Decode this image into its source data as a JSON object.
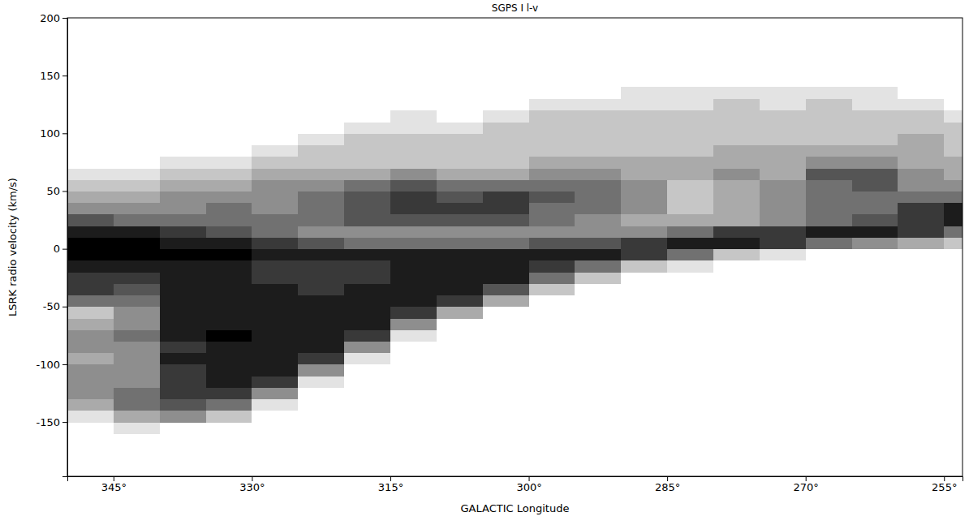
{
  "chart_data": {
    "type": "heatmap",
    "title": "SGPS I l-v",
    "x_label": "GALACTIC Longitude",
    "y_label": "LSRK radio velocity (km/s)",
    "xlim": [
      350,
      253
    ],
    "ylim": [
      -197,
      200
    ],
    "xticks": [
      {
        "value": 345,
        "label": "345°"
      },
      {
        "value": 330,
        "label": "330°"
      },
      {
        "value": 315,
        "label": "315°"
      },
      {
        "value": 300,
        "label": "300°"
      },
      {
        "value": 285,
        "label": "285°"
      },
      {
        "value": 270,
        "label": "270°"
      },
      {
        "value": 255,
        "label": "255°"
      }
    ],
    "yticks": [
      -150,
      -100,
      -50,
      0,
      50,
      100,
      150,
      200
    ],
    "grid": false,
    "color": "#000000",
    "zlim": [
      0,
      9
    ],
    "x_bins": [
      350,
      345,
      340,
      335,
      330,
      325,
      320,
      315,
      310,
      305,
      300,
      295,
      290,
      285,
      280,
      275,
      270,
      265,
      260,
      255,
      253
    ],
    "y_bins": [
      -160,
      -150,
      -140,
      -130,
      -120,
      -110,
      -100,
      -90,
      -80,
      -70,
      -60,
      -50,
      -40,
      -30,
      -20,
      -10,
      0,
      10,
      20,
      30,
      40,
      50,
      60,
      70,
      80,
      90,
      100,
      110,
      120,
      130,
      140
    ],
    "cells": [
      [
        0,
        1,
        3,
        4,
        4,
        4,
        3,
        4,
        4,
        3,
        2,
        5,
        7,
        7,
        8,
        9,
        9,
        8,
        6,
        4,
        3,
        2,
        1,
        0,
        0,
        0,
        0,
        0,
        0,
        0
      ],
      [
        1,
        3,
        5,
        5,
        4,
        4,
        4,
        4,
        5,
        4,
        4,
        5,
        6,
        7,
        8,
        9,
        9,
        8,
        5,
        4,
        3,
        2,
        1,
        0,
        0,
        0,
        0,
        0,
        0,
        0
      ],
      [
        0,
        4,
        6,
        7,
        7,
        7,
        8,
        7,
        8,
        8,
        8,
        8,
        8,
        8,
        8,
        9,
        8,
        7,
        5,
        4,
        4,
        3,
        2,
        1,
        0,
        0,
        0,
        0,
        0,
        0
      ],
      [
        0,
        2,
        5,
        7,
        8,
        8,
        8,
        8,
        9,
        8,
        8,
        8,
        8,
        8,
        8,
        9,
        8,
        6,
        5,
        5,
        4,
        3,
        2,
        1,
        0,
        0,
        0,
        0,
        0,
        0
      ],
      [
        0,
        0,
        1,
        4,
        7,
        8,
        8,
        8,
        8,
        8,
        8,
        8,
        8,
        7,
        7,
        8,
        7,
        5,
        5,
        4,
        4,
        4,
        3,
        2,
        1,
        0,
        0,
        0,
        0,
        0
      ],
      [
        0,
        0,
        0,
        0,
        1,
        4,
        7,
        8,
        8,
        8,
        8,
        8,
        7,
        7,
        7,
        8,
        6,
        4,
        5,
        5,
        5,
        4,
        3,
        2,
        2,
        1,
        0,
        0,
        0,
        0
      ],
      [
        0,
        0,
        0,
        0,
        0,
        0,
        1,
        4,
        7,
        8,
        8,
        8,
        8,
        7,
        7,
        8,
        5,
        4,
        6,
        6,
        6,
        5,
        3,
        2,
        2,
        2,
        1,
        0,
        0,
        0
      ],
      [
        0,
        0,
        0,
        0,
        0,
        0,
        0,
        0,
        1,
        4,
        7,
        8,
        8,
        8,
        8,
        8,
        5,
        4,
        6,
        7,
        7,
        6,
        4,
        2,
        2,
        2,
        1,
        1,
        0,
        0
      ],
      [
        0,
        0,
        0,
        0,
        0,
        0,
        0,
        0,
        0,
        0,
        3,
        7,
        8,
        8,
        8,
        8,
        5,
        4,
        6,
        7,
        6,
        5,
        3,
        2,
        2,
        2,
        1,
        0,
        0,
        0
      ],
      [
        0,
        0,
        0,
        0,
        0,
        0,
        0,
        0,
        0,
        0,
        0,
        3,
        6,
        8,
        8,
        8,
        5,
        4,
        6,
        7,
        7,
        5,
        3,
        2,
        2,
        2,
        2,
        1,
        0,
        0
      ],
      [
        0,
        0,
        0,
        0,
        0,
        0,
        0,
        0,
        0,
        0,
        0,
        0,
        2,
        5,
        7,
        8,
        6,
        4,
        5,
        5,
        6,
        5,
        4,
        3,
        2,
        2,
        2,
        2,
        1,
        0
      ],
      [
        0,
        0,
        0,
        0,
        0,
        0,
        0,
        0,
        0,
        0,
        0,
        0,
        0,
        2,
        5,
        8,
        6,
        4,
        4,
        5,
        5,
        5,
        4,
        3,
        2,
        2,
        2,
        2,
        1,
        0
      ],
      [
        0,
        0,
        0,
        0,
        0,
        0,
        0,
        0,
        0,
        0,
        0,
        0,
        0,
        0,
        2,
        7,
        7,
        4,
        3,
        4,
        4,
        4,
        3,
        3,
        2,
        2,
        2,
        2,
        1,
        1
      ],
      [
        0,
        0,
        0,
        0,
        0,
        0,
        0,
        0,
        0,
        0,
        0,
        0,
        0,
        0,
        1,
        5,
        8,
        5,
        3,
        2,
        2,
        2,
        3,
        3,
        2,
        2,
        2,
        2,
        1,
        1
      ],
      [
        0,
        0,
        0,
        0,
        0,
        0,
        0,
        0,
        0,
        0,
        0,
        0,
        0,
        0,
        0,
        2,
        8,
        7,
        3,
        3,
        3,
        3,
        4,
        3,
        3,
        2,
        2,
        2,
        2,
        1
      ],
      [
        0,
        0,
        0,
        0,
        0,
        0,
        0,
        0,
        0,
        0,
        0,
        0,
        0,
        0,
        0,
        1,
        7,
        7,
        4,
        4,
        4,
        4,
        3,
        3,
        3,
        2,
        2,
        2,
        1,
        1
      ],
      [
        0,
        0,
        0,
        0,
        0,
        0,
        0,
        0,
        0,
        0,
        0,
        0,
        0,
        0,
        0,
        0,
        5,
        8,
        5,
        5,
        5,
        5,
        6,
        4,
        3,
        2,
        2,
        2,
        2,
        1
      ],
      [
        0,
        0,
        0,
        0,
        0,
        0,
        0,
        0,
        0,
        0,
        0,
        0,
        0,
        0,
        0,
        0,
        4,
        8,
        6,
        5,
        5,
        6,
        6,
        4,
        3,
        2,
        2,
        2,
        1,
        1
      ],
      [
        0,
        0,
        0,
        0,
        0,
        0,
        0,
        0,
        0,
        0,
        0,
        0,
        0,
        0,
        0,
        0,
        3,
        7,
        7,
        7,
        5,
        4,
        4,
        3,
        3,
        3,
        2,
        2,
        1,
        0
      ],
      [
        0,
        0,
        0,
        0,
        0,
        0,
        0,
        0,
        0,
        0,
        0,
        0,
        0,
        0,
        0,
        0,
        2,
        5,
        8,
        8,
        5,
        4,
        3,
        3,
        2,
        2,
        2,
        1,
        0,
        0
      ]
    ]
  }
}
